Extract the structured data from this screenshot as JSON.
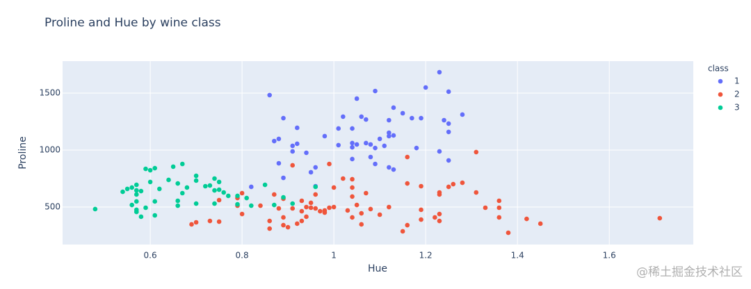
{
  "chart_data": {
    "type": "scatter",
    "title": "Proline and Hue by wine class",
    "x_label": "Hue",
    "y_label": "Proline",
    "legend_title": "class",
    "legend_position": "right",
    "grid": true,
    "xlim": [
      0.409,
      1.783
    ],
    "ylim": [
      171,
      1780
    ],
    "xticks": [
      0.6,
      0.8,
      1,
      1.2,
      1.4,
      1.6
    ],
    "yticks": [
      500,
      1000,
      1500
    ],
    "series": [
      {
        "name": "1",
        "color": "#636efa",
        "x": [
          0.86,
          1.23,
          1.2,
          1.09,
          1.25,
          1.05,
          1.13,
          1.15,
          1.28,
          1.02,
          1.06,
          0.89,
          1.17,
          1.19,
          1.07,
          1.12,
          1.24,
          1.25,
          0.92,
          1.01,
          1.04,
          1.25,
          1.12,
          1.13,
          0.98,
          1.12,
          0.88,
          0.87,
          1.1,
          0.91,
          0.92,
          1.01,
          1.04,
          1.05,
          1.07,
          1.08,
          1.09,
          1.11,
          1.04,
          1.18,
          0.91,
          0.94,
          1.04,
          1.08,
          1.23,
          1.25,
          0.96,
          0.88,
          1.09,
          1.12,
          1.13,
          0.95,
          0.89,
          0.96,
          0.82
        ],
        "y": [
          1482,
          1683,
          1549,
          1518,
          1512,
          1451,
          1372,
          1323,
          1311,
          1293,
          1293,
          1280,
          1280,
          1280,
          1268,
          1262,
          1262,
          1232,
          1195,
          1189,
          1189,
          1159,
          1152,
          1128,
          1122,
          1122,
          1098,
          1079,
          1098,
          1037,
          1055,
          1043,
          1061,
          1049,
          1061,
          1049,
          1018,
          1037,
          1024,
          1018,
          988,
          976,
          921,
          939,
          988,
          909,
          848,
          884,
          878,
          848,
          829,
          805,
          756,
          683,
          677
        ]
      },
      {
        "name": "2",
        "color": "#ef553b",
        "x": [
          1.31,
          1.16,
          0.91,
          0.99,
          1.02,
          1.04,
          1.16,
          1.19,
          1.04,
          1,
          1.26,
          1.28,
          1.25,
          1.23,
          1.23,
          1.31,
          1.07,
          0.8,
          0.87,
          1.36,
          1.33,
          1.36,
          1.19,
          0.89,
          0.96,
          0.79,
          0.75,
          0.95,
          0.94,
          0.93,
          1.04,
          1.05,
          0.84,
          0.95,
          0.96,
          0.91,
          0.99,
          1,
          0.98,
          0.98,
          0.97,
          1.03,
          1.08,
          1.12,
          0.88,
          0.93,
          0.79,
          0.8,
          1.06,
          1.1,
          0.89,
          0.92,
          0.93,
          0.94,
          1.04,
          1.23,
          1.22,
          1.19,
          0.86,
          0.89,
          0.9,
          0.86,
          1.06,
          0.69,
          0.7,
          0.73,
          0.75,
          1.16,
          1.15,
          1.23,
          1.36,
          1.42,
          1.45,
          1.38,
          1.71
        ],
        "y": [
          982,
          939,
          866,
          878,
          750,
          744,
          707,
          683,
          671,
          671,
          701,
          713,
          677,
          628,
          610,
          628,
          622,
          622,
          610,
          555,
          494,
          494,
          476,
          573,
          610,
          579,
          561,
          537,
          500,
          555,
          592,
          518,
          512,
          494,
          488,
          488,
          494,
          500,
          470,
          451,
          463,
          470,
          482,
          500,
          488,
          463,
          512,
          439,
          445,
          433,
          409,
          354,
          378,
          415,
          409,
          439,
          409,
          390,
          378,
          341,
          323,
          311,
          348,
          348,
          366,
          378,
          372,
          341,
          287,
          378,
          409,
          396,
          354,
          274,
          402
        ]
      },
      {
        "name": "3",
        "color": "#00cc96",
        "x": [
          0.48,
          0.67,
          0.59,
          0.61,
          0.6,
          0.65,
          0.7,
          0.7,
          0.64,
          0.66,
          0.62,
          0.68,
          0.67,
          0.73,
          0.72,
          0.74,
          0.75,
          0.75,
          0.76,
          0.74,
          0.77,
          0.79,
          0.81,
          0.85,
          0.57,
          0.56,
          0.57,
          0.58,
          0.55,
          0.54,
          0.57,
          0.6,
          0.66,
          0.66,
          0.61,
          0.57,
          0.56,
          0.59,
          0.57,
          0.57,
          0.58,
          0.61,
          0.79,
          0.82,
          0.74,
          0.7,
          0.89,
          0.87,
          0.96,
          0.91
        ],
        "y": [
          482,
          878,
          835,
          841,
          823,
          854,
          774,
          732,
          738,
          707,
          659,
          671,
          622,
          689,
          683,
          750,
          720,
          652,
          628,
          646,
          598,
          598,
          579,
          695,
          695,
          671,
          646,
          640,
          659,
          634,
          610,
          720,
          555,
          512,
          549,
          549,
          518,
          494,
          476,
          457,
          415,
          427,
          524,
          512,
          530,
          530,
          585,
          518,
          677,
          530
        ]
      }
    ],
    "watermark": "@稀土掘金技术社区"
  }
}
